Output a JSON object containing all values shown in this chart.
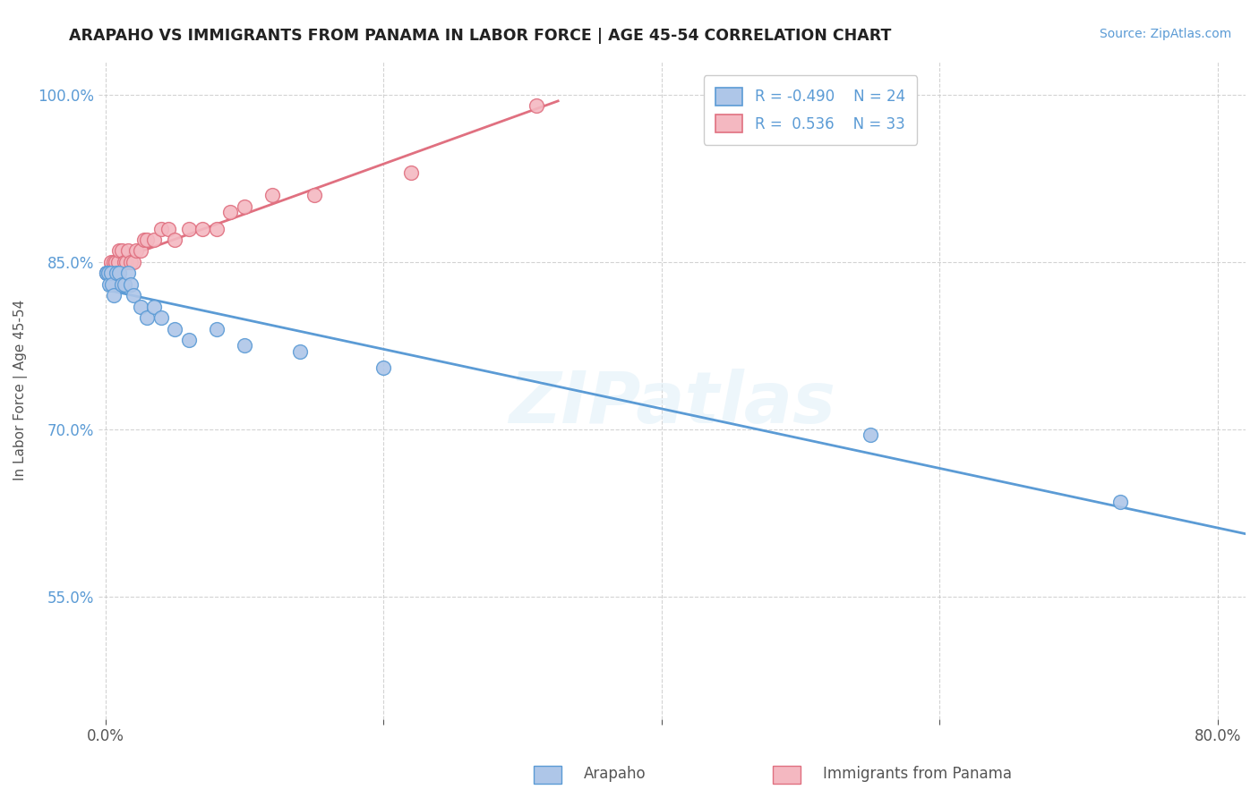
{
  "title": "ARAPAHO VS IMMIGRANTS FROM PANAMA IN LABOR FORCE | AGE 45-54 CORRELATION CHART",
  "source_text": "Source: ZipAtlas.com",
  "ylabel": "In Labor Force | Age 45-54",
  "xlim": [
    -0.005,
    0.82
  ],
  "ylim": [
    0.44,
    1.03
  ],
  "xtick_positions": [
    0.0,
    0.2,
    0.4,
    0.6,
    0.8
  ],
  "xtick_labels": [
    "0.0%",
    "",
    "",
    "",
    "80.0%"
  ],
  "ytick_positions": [
    0.55,
    0.7,
    0.85,
    1.0
  ],
  "ytick_labels": [
    "55.0%",
    "70.0%",
    "85.0%",
    "100.0%"
  ],
  "color_blue": "#aec6e8",
  "color_pink": "#f4b8c1",
  "color_blue_edge": "#5b9bd5",
  "color_pink_edge": "#e07080",
  "color_blue_line": "#5b9bd5",
  "color_pink_line": "#e07080",
  "watermark": "ZIPatlas",
  "arapaho_x": [
    0.001,
    0.001,
    0.002,
    0.003,
    0.004,
    0.005,
    0.006,
    0.008,
    0.01,
    0.012,
    0.014,
    0.016,
    0.018,
    0.02,
    0.025,
    0.03,
    0.035,
    0.04,
    0.05,
    0.06,
    0.08,
    0.1,
    0.14,
    0.2,
    0.55,
    0.73
  ],
  "arapaho_y": [
    0.84,
    0.84,
    0.84,
    0.83,
    0.84,
    0.83,
    0.82,
    0.84,
    0.84,
    0.83,
    0.83,
    0.84,
    0.83,
    0.82,
    0.81,
    0.8,
    0.81,
    0.8,
    0.79,
    0.78,
    0.79,
    0.775,
    0.77,
    0.755,
    0.695,
    0.635
  ],
  "panama_x": [
    0.001,
    0.002,
    0.003,
    0.004,
    0.005,
    0.006,
    0.007,
    0.008,
    0.009,
    0.01,
    0.012,
    0.014,
    0.015,
    0.016,
    0.018,
    0.02,
    0.022,
    0.025,
    0.028,
    0.03,
    0.035,
    0.04,
    0.045,
    0.05,
    0.06,
    0.07,
    0.08,
    0.09,
    0.1,
    0.12,
    0.15,
    0.22,
    0.31
  ],
  "panama_y": [
    0.84,
    0.84,
    0.84,
    0.85,
    0.84,
    0.85,
    0.85,
    0.84,
    0.85,
    0.86,
    0.86,
    0.85,
    0.85,
    0.86,
    0.85,
    0.85,
    0.86,
    0.86,
    0.87,
    0.87,
    0.87,
    0.88,
    0.88,
    0.87,
    0.88,
    0.88,
    0.88,
    0.895,
    0.9,
    0.91,
    0.91,
    0.93,
    0.99
  ],
  "background_color": "#ffffff",
  "grid_color": "#c8c8c8"
}
